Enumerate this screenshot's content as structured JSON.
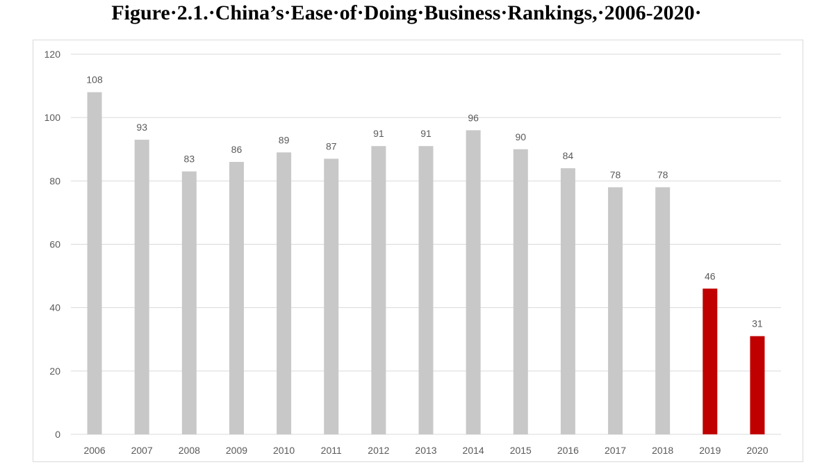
{
  "figure_title": "Figure·2.1.·China’s·Ease·of·Doing·Business·Rankings,·2006-2020·",
  "chart_data": {
    "type": "bar",
    "title": "",
    "xlabel": "",
    "ylabel": "",
    "categories": [
      "2006",
      "2007",
      "2008",
      "2009",
      "2010",
      "2011",
      "2012",
      "2013",
      "2014",
      "2015",
      "2016",
      "2017",
      "2018",
      "2019",
      "2020"
    ],
    "values": [
      108,
      93,
      83,
      86,
      89,
      87,
      91,
      91,
      96,
      90,
      84,
      78,
      78,
      46,
      31
    ],
    "data_labels": [
      "108",
      "93",
      "83",
      "86",
      "89",
      "87",
      "91",
      "91",
      "96",
      "90",
      "84",
      "78",
      "78",
      "46",
      "31"
    ],
    "ylim": [
      0,
      120
    ],
    "yticks": [
      "0",
      "20",
      "40",
      "60",
      "80",
      "100",
      "120"
    ],
    "grid": true,
    "legend": "none",
    "colors": {
      "default_bar": "#c8c8c8",
      "highlight_bar": "#c00000",
      "gridline": "#d9d9d9",
      "text": "#595959"
    },
    "highlighted_categories": [
      "2019",
      "2020"
    ]
  }
}
